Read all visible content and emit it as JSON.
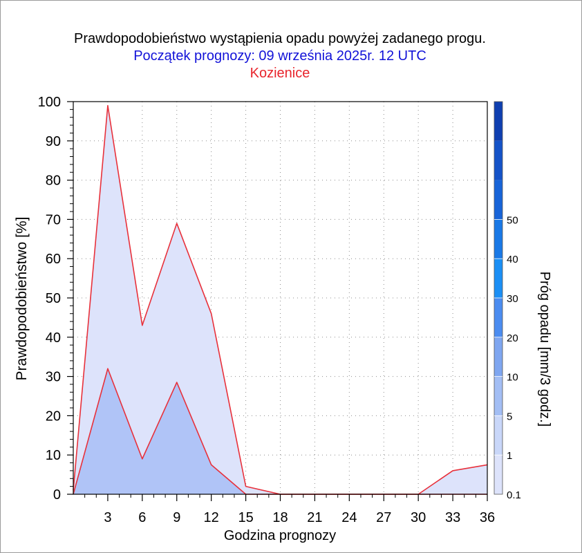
{
  "chart_data": {
    "type": "area",
    "title": "Prawdopodobieństwo wystąpienia opadu powyżej zadanego progu.",
    "subtitle": "Początek prognozy: 09 września 2025r. 12 UTC",
    "location": "Kozienice",
    "xlabel": "Godzina prognozy",
    "ylabel": "Prawdopodobieństwo [%]",
    "xlim": [
      0,
      36
    ],
    "ylim": [
      0,
      100
    ],
    "x_ticks": [
      3,
      6,
      9,
      12,
      15,
      18,
      21,
      24,
      27,
      30,
      33,
      36
    ],
    "y_ticks": [
      0,
      10,
      20,
      30,
      40,
      50,
      60,
      70,
      80,
      90,
      100
    ],
    "grid": true,
    "x": [
      0,
      3,
      6,
      9,
      12,
      15,
      18,
      21,
      24,
      27,
      30,
      33,
      36
    ],
    "series": [
      {
        "name": "0.1",
        "color": "#dde3fb",
        "values": [
          1,
          99,
          43,
          69,
          46,
          2,
          0,
          0,
          0,
          0,
          0,
          6,
          7.5
        ]
      },
      {
        "name": "1",
        "color": "#b0c4f7",
        "values": [
          0,
          32,
          9,
          28.5,
          7.5,
          0,
          0,
          0,
          0,
          0,
          0,
          0,
          0
        ]
      }
    ],
    "line_color": "#e8303a",
    "colorbar": {
      "label": "Próg opadu [mm/3 godz.]",
      "labels": [
        "0.1",
        "1",
        "5",
        "10",
        "20",
        "30",
        "40",
        "50"
      ],
      "colors": [
        "#dde3fb",
        "#c9d7f9",
        "#a3bef4",
        "#7fa6f0",
        "#4b8cf0",
        "#1b8ff5",
        "#1a79e6",
        "#1864d8",
        "#1553c8",
        "#0f3fb0"
      ]
    }
  }
}
